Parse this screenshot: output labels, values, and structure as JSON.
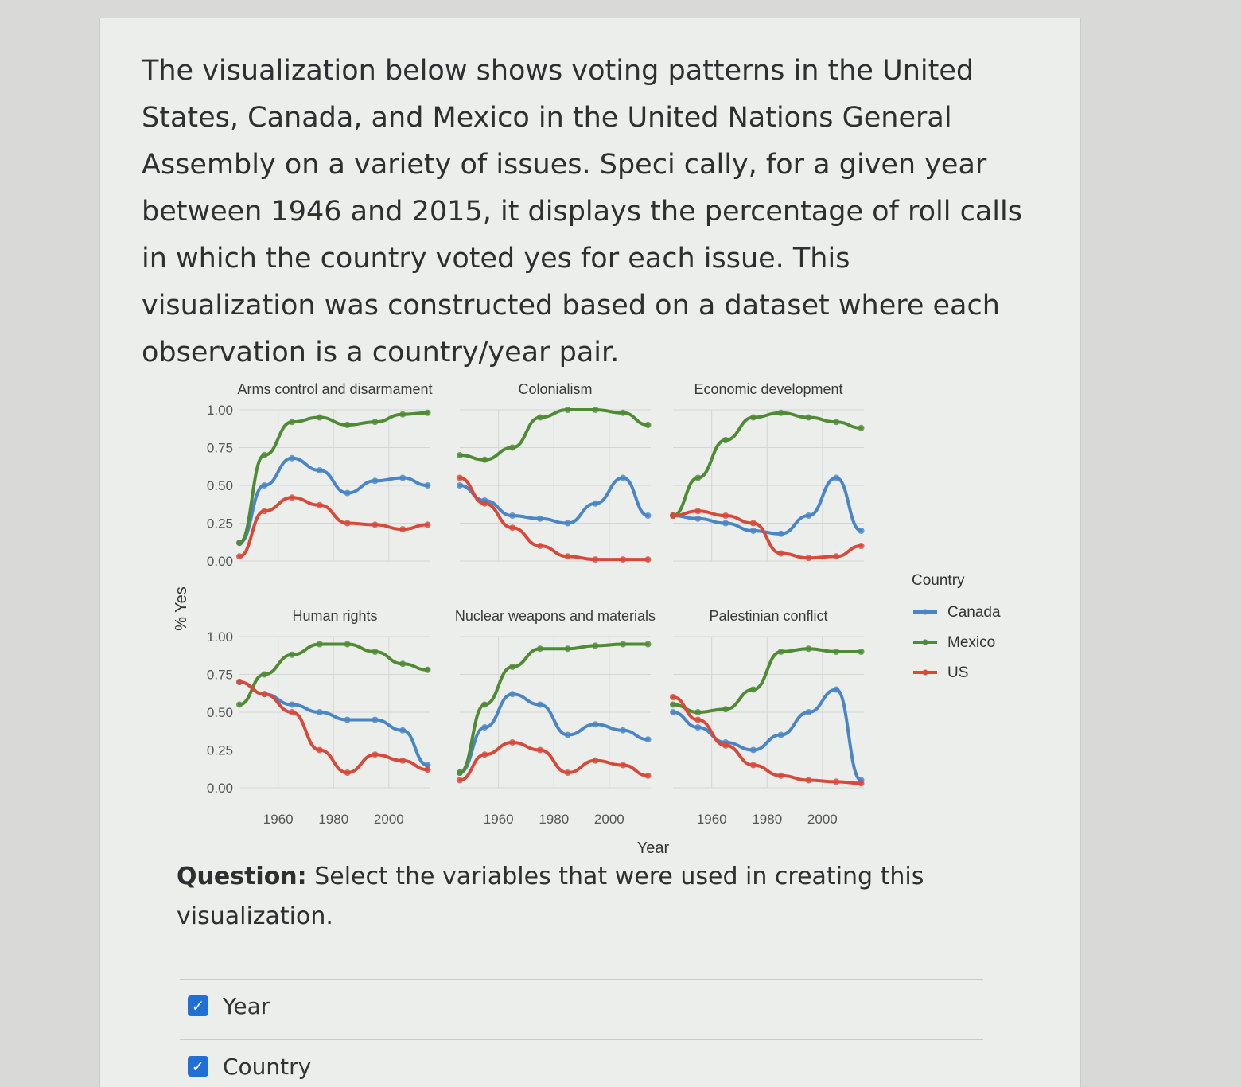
{
  "intro_text": "The visualization below shows voting patterns in the United States, Canada, and Mexico in the United Nations General Assembly on a variety of issues. Speci cally, for a given year between 1946 and 2015, it displays the percentage of roll calls in which the country voted yes for each issue. This visualization was constructed based on a dataset where each observation is a country/year pair.",
  "question": {
    "prefix": "Question:",
    "text": " Select the variables that were used in creating this visualization."
  },
  "options": [
    {
      "label": "Year",
      "checked": true
    },
    {
      "label": "Country",
      "checked": true
    }
  ],
  "colors": {
    "Canada": "#4a86c5",
    "Mexico": "#4f8a35",
    "US": "#d9493a"
  },
  "chart_data": {
    "type": "scatter",
    "subtype": "faceted scatter with smoothed lines",
    "x_label": "Year",
    "y_label": "% Yes",
    "x_ticks": [
      "1960",
      "1980",
      "2000"
    ],
    "x_tick_values": [
      1960,
      1980,
      2000
    ],
    "y_ticks": [
      "0.00",
      "0.25",
      "0.50",
      "0.75",
      "1.00"
    ],
    "y_tick_values": [
      0,
      0.25,
      0.5,
      0.75,
      1.0
    ],
    "xlim": [
      1946,
      2015
    ],
    "ylim": [
      0,
      1
    ],
    "grid": true,
    "legend": {
      "title": "Country",
      "position": "right",
      "entries": [
        "Canada",
        "Mexico",
        "US"
      ]
    },
    "panels": [
      {
        "title": "Arms control and disarmament",
        "series": [
          {
            "name": "Canada",
            "x": [
              1946,
              1955,
              1965,
              1975,
              1985,
              1995,
              2005,
              2014
            ],
            "y": [
              0.12,
              0.5,
              0.68,
              0.6,
              0.45,
              0.53,
              0.55,
              0.5
            ]
          },
          {
            "name": "Mexico",
            "x": [
              1946,
              1955,
              1965,
              1975,
              1985,
              1995,
              2005,
              2014
            ],
            "y": [
              0.12,
              0.7,
              0.92,
              0.95,
              0.9,
              0.92,
              0.97,
              0.98
            ]
          },
          {
            "name": "US",
            "x": [
              1946,
              1955,
              1965,
              1975,
              1985,
              1995,
              2005,
              2014
            ],
            "y": [
              0.03,
              0.33,
              0.42,
              0.37,
              0.25,
              0.24,
              0.21,
              0.24
            ]
          }
        ]
      },
      {
        "title": "Colonialism",
        "series": [
          {
            "name": "Canada",
            "x": [
              1946,
              1955,
              1965,
              1975,
              1985,
              1995,
              2005,
              2014
            ],
            "y": [
              0.5,
              0.4,
              0.3,
              0.28,
              0.25,
              0.38,
              0.55,
              0.3
            ]
          },
          {
            "name": "Mexico",
            "x": [
              1946,
              1955,
              1965,
              1975,
              1985,
              1995,
              2005,
              2014
            ],
            "y": [
              0.7,
              0.67,
              0.75,
              0.95,
              1.0,
              1.0,
              0.98,
              0.9
            ]
          },
          {
            "name": "US",
            "x": [
              1946,
              1955,
              1965,
              1975,
              1985,
              1995,
              2005,
              2014
            ],
            "y": [
              0.55,
              0.38,
              0.22,
              0.1,
              0.03,
              0.01,
              0.01,
              0.01
            ]
          }
        ]
      },
      {
        "title": "Economic development",
        "series": [
          {
            "name": "Canada",
            "x": [
              1946,
              1955,
              1965,
              1975,
              1985,
              1995,
              2005,
              2014
            ],
            "y": [
              0.3,
              0.28,
              0.25,
              0.2,
              0.18,
              0.3,
              0.55,
              0.2
            ]
          },
          {
            "name": "Mexico",
            "x": [
              1946,
              1955,
              1965,
              1975,
              1985,
              1995,
              2005,
              2014
            ],
            "y": [
              0.3,
              0.55,
              0.8,
              0.95,
              0.98,
              0.95,
              0.92,
              0.88
            ]
          },
          {
            "name": "US",
            "x": [
              1946,
              1955,
              1965,
              1975,
              1985,
              1995,
              2005,
              2014
            ],
            "y": [
              0.3,
              0.33,
              0.3,
              0.25,
              0.05,
              0.02,
              0.03,
              0.1
            ]
          }
        ]
      },
      {
        "title": "Human rights",
        "series": [
          {
            "name": "Canada",
            "x": [
              1946,
              1955,
              1965,
              1975,
              1985,
              1995,
              2005,
              2014
            ],
            "y": [
              0.7,
              0.62,
              0.55,
              0.5,
              0.45,
              0.45,
              0.38,
              0.15
            ]
          },
          {
            "name": "Mexico",
            "x": [
              1946,
              1955,
              1965,
              1975,
              1985,
              1995,
              2005,
              2014
            ],
            "y": [
              0.55,
              0.75,
              0.88,
              0.95,
              0.95,
              0.9,
              0.82,
              0.78
            ]
          },
          {
            "name": "US",
            "x": [
              1946,
              1955,
              1965,
              1975,
              1985,
              1995,
              2005,
              2014
            ],
            "y": [
              0.7,
              0.62,
              0.5,
              0.25,
              0.1,
              0.22,
              0.18,
              0.12
            ]
          }
        ]
      },
      {
        "title": "Nuclear weapons and materials",
        "series": [
          {
            "name": "Canada",
            "x": [
              1946,
              1955,
              1965,
              1975,
              1985,
              1995,
              2005,
              2014
            ],
            "y": [
              0.1,
              0.4,
              0.62,
              0.55,
              0.35,
              0.42,
              0.38,
              0.32
            ]
          },
          {
            "name": "Mexico",
            "x": [
              1946,
              1955,
              1965,
              1975,
              1985,
              1995,
              2005,
              2014
            ],
            "y": [
              0.1,
              0.55,
              0.8,
              0.92,
              0.92,
              0.94,
              0.95,
              0.95
            ]
          },
          {
            "name": "US",
            "x": [
              1946,
              1955,
              1965,
              1975,
              1985,
              1995,
              2005,
              2014
            ],
            "y": [
              0.05,
              0.22,
              0.3,
              0.25,
              0.1,
              0.18,
              0.15,
              0.08
            ]
          }
        ]
      },
      {
        "title": "Palestinian conflict",
        "series": [
          {
            "name": "Canada",
            "x": [
              1946,
              1955,
              1965,
              1975,
              1985,
              1995,
              2005,
              2014
            ],
            "y": [
              0.5,
              0.4,
              0.3,
              0.25,
              0.35,
              0.5,
              0.65,
              0.05
            ]
          },
          {
            "name": "Mexico",
            "x": [
              1946,
              1955,
              1965,
              1975,
              1985,
              1995,
              2005,
              2014
            ],
            "y": [
              0.55,
              0.5,
              0.52,
              0.65,
              0.9,
              0.92,
              0.9,
              0.9
            ]
          },
          {
            "name": "US",
            "x": [
              1946,
              1955,
              1965,
              1975,
              1985,
              1995,
              2005,
              2014
            ],
            "y": [
              0.6,
              0.45,
              0.28,
              0.15,
              0.08,
              0.05,
              0.04,
              0.03
            ]
          }
        ]
      }
    ]
  }
}
